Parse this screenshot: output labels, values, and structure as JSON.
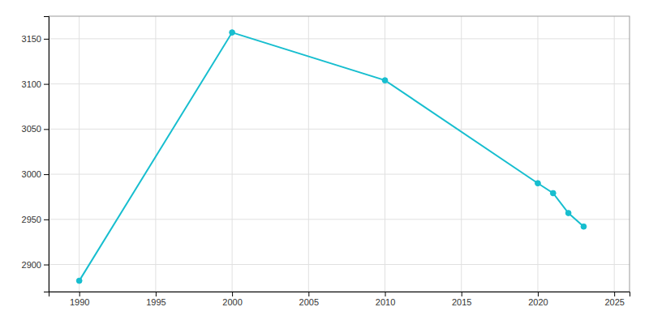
{
  "chart_data": {
    "type": "line",
    "x": [
      1990,
      2000,
      2010,
      2020,
      2021,
      2022,
      2023
    ],
    "values": [
      2882,
      3157,
      3104,
      2990,
      2979,
      2957,
      2942
    ],
    "color": "#17BECF",
    "marker": "circle",
    "xlim": [
      1988,
      2026
    ],
    "ylim": [
      2870,
      3175
    ],
    "xticks": [
      1990,
      1995,
      2000,
      2005,
      2010,
      2015,
      2020,
      2025
    ],
    "yticks": [
      2900,
      2950,
      3000,
      3050,
      3100,
      3150
    ],
    "grid": true
  }
}
